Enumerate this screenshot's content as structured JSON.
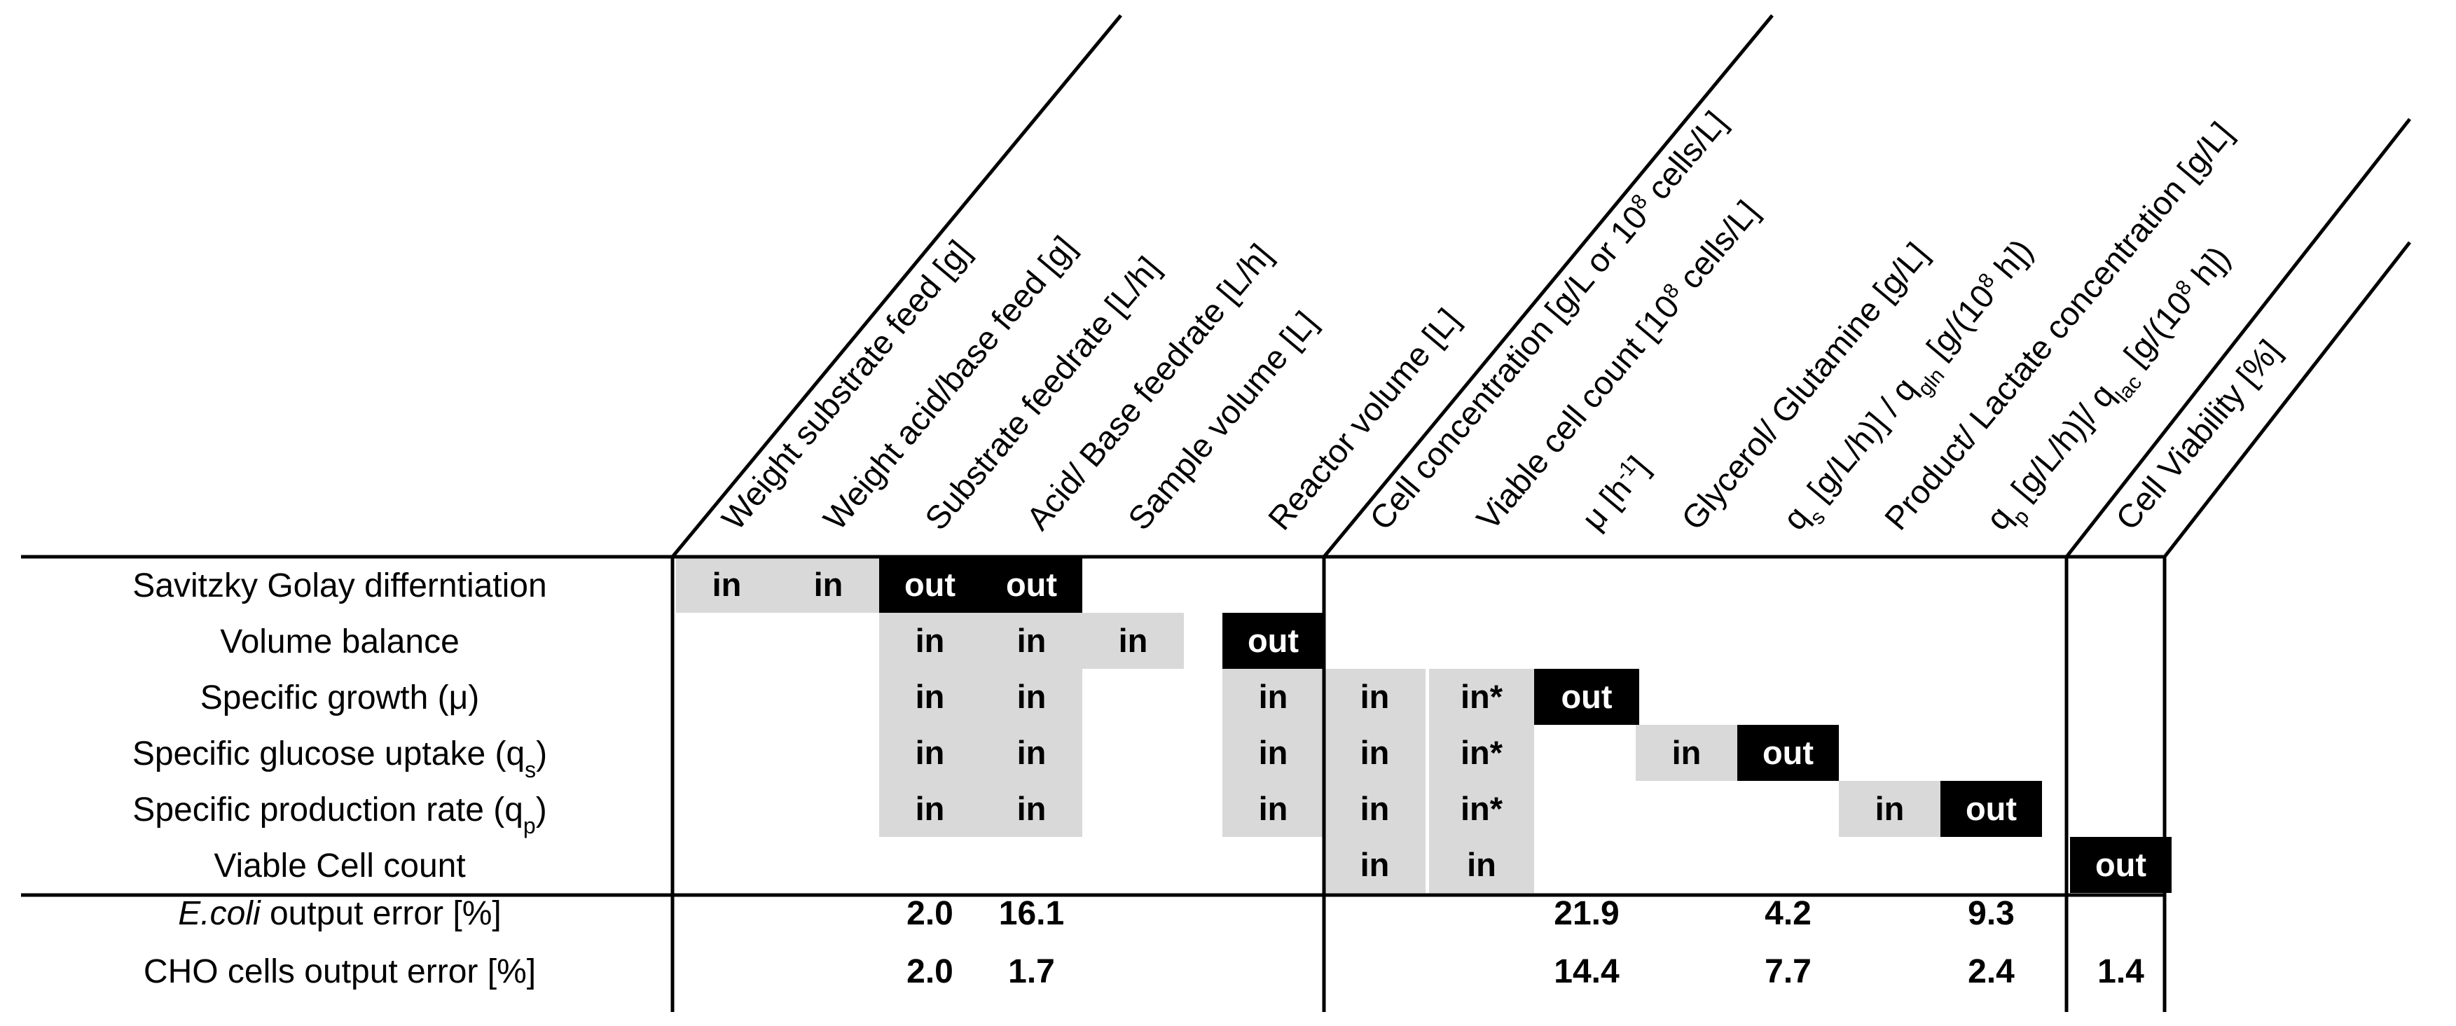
{
  "columns": [
    {
      "label": "Weight substrate feed [g]"
    },
    {
      "label": "Weight acid/base feed [g]"
    },
    {
      "label": "Substrate feedrate [L/h]"
    },
    {
      "label": "Acid/ Base feedrate [L/h]"
    },
    {
      "label": "Sample volume [L]"
    },
    {
      "label": "Reactor volume [L]"
    },
    {
      "label": "Cell concentration [g/L or 10",
      "sup": "8",
      "tail": " cells/L]"
    },
    {
      "label": "Viable cell count [10",
      "sup": "8",
      "tail": " cells/L]"
    },
    {
      "label": "μ [h",
      "sup": "-1",
      "tail": "]"
    },
    {
      "label": "Glycerol/ Glutamine [g/L]"
    },
    {
      "label": "q",
      "sub": "s",
      "tail": " [g/L/h)] / q",
      "sub2": "gln",
      "tail2": " [g/(10",
      "sup2": "8",
      "tail3": " h])"
    },
    {
      "label": "Product/ Lactate concentration [g/L]"
    },
    {
      "label": "q",
      "sub": "p",
      "tail": " [g/L/h)]/ q",
      "sub2": "lac",
      "tail2": " [g/(10",
      "sup2": "8",
      "tail3": " h])"
    },
    {
      "label": "Cell Viability [%]"
    }
  ],
  "rows": [
    {
      "label": "Savitzky Golay differntiation",
      "cells": [
        "in",
        "in",
        "out",
        "out",
        "",
        "",
        "",
        "",
        "",
        "",
        "",
        "",
        "",
        ""
      ]
    },
    {
      "label": "Volume balance",
      "cells": [
        "",
        "",
        "in",
        "in",
        "in",
        "out",
        "",
        "",
        "",
        "",
        "",
        "",
        "",
        ""
      ]
    },
    {
      "label": "Specific growth (μ)",
      "cells": [
        "",
        "",
        "in",
        "in",
        "",
        "in",
        "in",
        "in*",
        "out",
        "",
        "",
        "",
        "",
        ""
      ]
    },
    {
      "label": "Specific glucose uptake (q",
      "label_sub": "s",
      "label_tail": ")",
      "cells": [
        "",
        "",
        "in",
        "in",
        "",
        "in",
        "in",
        "in*",
        "",
        "in",
        "out",
        "",
        "",
        ""
      ]
    },
    {
      "label": "Specific production rate (q",
      "label_sub": "p",
      "label_tail": ")",
      "cells": [
        "",
        "",
        "in",
        "in",
        "",
        "in",
        "in",
        "in*",
        "",
        "",
        "",
        "in",
        "out",
        ""
      ]
    },
    {
      "label": "Viable Cell count",
      "cells": [
        "",
        "",
        "",
        "",
        "",
        "",
        "in",
        "in",
        "",
        "",
        "",
        "",
        "",
        "out"
      ]
    }
  ],
  "errors": [
    {
      "label_italic": "E.coli",
      "label_rest": "  output error [%]",
      "values": [
        "",
        "",
        "2.0",
        "16.1",
        "",
        "",
        "",
        "",
        "21.9",
        "",
        "4.2",
        "",
        "9.3",
        ""
      ]
    },
    {
      "label_italic": "",
      "label_rest": "CHO cells output error [%]",
      "values": [
        "",
        "",
        "2.0",
        "1.7",
        "",
        "",
        "",
        "",
        "14.4",
        "",
        "7.7",
        "",
        "2.4",
        "1.4"
      ]
    }
  ],
  "colors": {
    "in_fill": "#d9d9d9",
    "out_fill": "#000000",
    "line": "#000000"
  }
}
